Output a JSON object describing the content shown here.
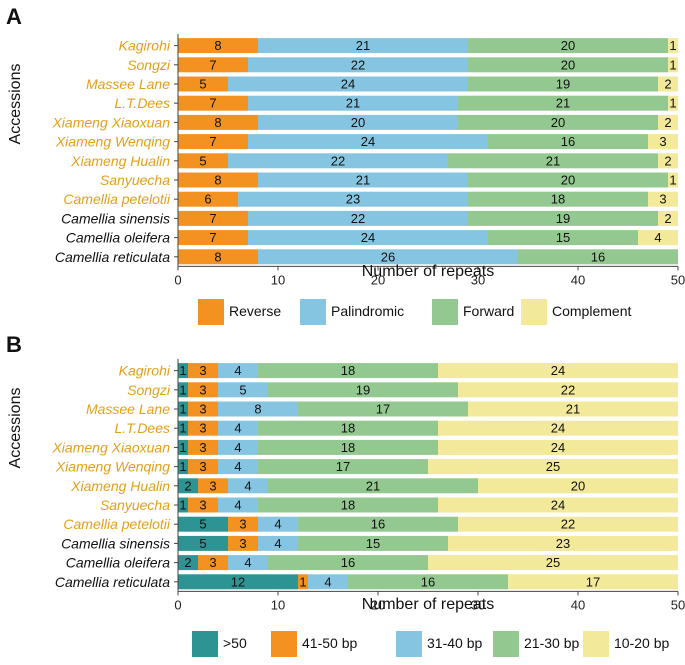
{
  "chart_data": [
    {
      "panel": "A",
      "type": "bar",
      "orientation": "horizontal",
      "stacked": true,
      "xlabel": "Number of repeats",
      "ylabel": "Accessions",
      "xlim": [
        0,
        50
      ],
      "xticks": [
        0,
        10,
        20,
        30,
        40,
        50
      ],
      "categories": [
        {
          "name": "Kagirohi",
          "color": "#E3A01B"
        },
        {
          "name": "Songzi",
          "color": "#E3A01B"
        },
        {
          "name": "Massee Lane",
          "color": "#E3A01B"
        },
        {
          "name": "L.T.Dees",
          "color": "#E3A01B"
        },
        {
          "name": "Xiameng Xiaoxuan",
          "color": "#E3A01B"
        },
        {
          "name": "Xiameng Wenqing",
          "color": "#E3A01B"
        },
        {
          "name": "Xiameng Hualin",
          "color": "#E3A01B"
        },
        {
          "name": "Sanyuecha",
          "color": "#E3A01B"
        },
        {
          "name": "Camellia petelotii",
          "color": "#E3A01B"
        },
        {
          "name": "Camellia sinensis",
          "color": "#111111"
        },
        {
          "name": "Camellia oleifera",
          "color": "#111111"
        },
        {
          "name": "Camellia reticulata",
          "color": "#111111"
        }
      ],
      "series": [
        {
          "name": "Reverse",
          "color": "#F39221",
          "values": [
            8,
            7,
            5,
            7,
            8,
            7,
            5,
            8,
            6,
            7,
            7,
            8
          ]
        },
        {
          "name": "Palindromic",
          "color": "#86C5E1",
          "values": [
            21,
            22,
            24,
            21,
            20,
            24,
            22,
            21,
            23,
            22,
            24,
            26
          ]
        },
        {
          "name": "Forward",
          "color": "#93C990",
          "values": [
            20,
            20,
            19,
            21,
            20,
            16,
            21,
            20,
            18,
            19,
            15,
            16
          ]
        },
        {
          "name": "Complement",
          "color": "#F2E99A",
          "values": [
            1,
            1,
            2,
            1,
            2,
            3,
            2,
            1,
            3,
            2,
            4,
            0
          ]
        }
      ]
    },
    {
      "panel": "B",
      "type": "bar",
      "orientation": "horizontal",
      "stacked": true,
      "xlabel": "Number of repeats",
      "ylabel": "Accessions",
      "xlim": [
        0,
        50
      ],
      "xticks": [
        0,
        10,
        20,
        30,
        40,
        50
      ],
      "categories": [
        {
          "name": "Kagirohi",
          "color": "#E3A01B"
        },
        {
          "name": "Songzi",
          "color": "#E3A01B"
        },
        {
          "name": "Massee Lane",
          "color": "#E3A01B"
        },
        {
          "name": "L.T.Dees",
          "color": "#E3A01B"
        },
        {
          "name": "Xiameng Xiaoxuan",
          "color": "#E3A01B"
        },
        {
          "name": "Xiameng Wenqing",
          "color": "#E3A01B"
        },
        {
          "name": "Xiameng Hualin",
          "color": "#E3A01B"
        },
        {
          "name": "Sanyuecha",
          "color": "#E3A01B"
        },
        {
          "name": "Camellia petelotii",
          "color": "#E3A01B"
        },
        {
          "name": "Camellia sinensis",
          "color": "#111111"
        },
        {
          "name": "Camellia oleifera",
          "color": "#111111"
        },
        {
          "name": "Camellia reticulata",
          "color": "#111111"
        }
      ],
      "series": [
        {
          "name": ">50",
          "color": "#2E9393",
          "values": [
            1,
            1,
            1,
            1,
            1,
            1,
            2,
            1,
            5,
            5,
            2,
            12
          ]
        },
        {
          "name": "41-50 bp",
          "color": "#F39221",
          "values": [
            3,
            3,
            3,
            3,
            3,
            3,
            3,
            3,
            3,
            3,
            3,
            1
          ]
        },
        {
          "name": "31-40 bp",
          "color": "#86C5E1",
          "values": [
            4,
            5,
            8,
            4,
            4,
            4,
            4,
            4,
            4,
            4,
            4,
            4
          ]
        },
        {
          "name": "21-30 bp",
          "color": "#93C990",
          "values": [
            18,
            19,
            17,
            18,
            18,
            17,
            21,
            18,
            16,
            15,
            16,
            16
          ]
        },
        {
          "name": "10-20 bp",
          "color": "#F2E99A",
          "values": [
            24,
            22,
            21,
            24,
            24,
            25,
            20,
            24,
            22,
            23,
            25,
            17
          ]
        }
      ]
    }
  ]
}
